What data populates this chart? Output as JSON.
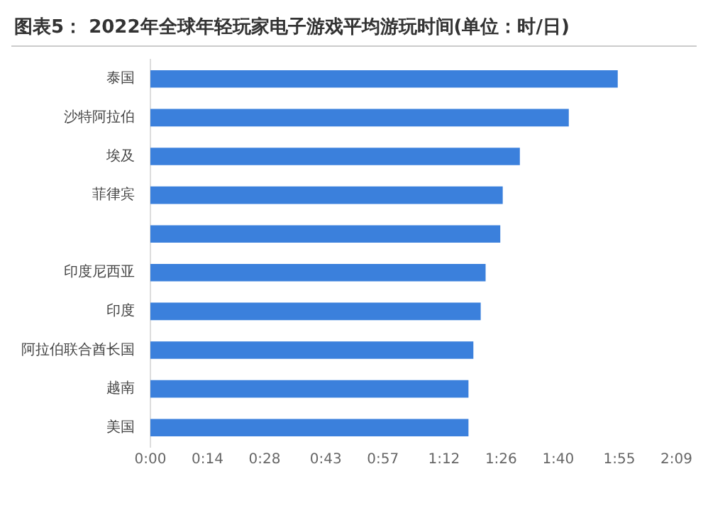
{
  "chart_data": {
    "type": "bar",
    "orientation": "horizontal",
    "title": "图表5： 2022年全球年轻玩家电子游戏平均游玩时间(单位：时/日)",
    "categories": [
      "泰国",
      "沙特阿拉伯",
      "埃及",
      "菲律宾",
      null,
      "印度尼西亚",
      "印度",
      "阿拉伯联合酋长国",
      "越南",
      "美国"
    ],
    "values": [
      1.91,
      1.71,
      1.51,
      1.44,
      1.43,
      1.37,
      1.35,
      1.32,
      1.3,
      1.3
    ],
    "color": "#3b80dc",
    "xlim": [
      0,
      2.15
    ],
    "xticks": [
      {
        "value": 0,
        "label": "0:00"
      },
      {
        "value": 0.2333,
        "label": "0:14"
      },
      {
        "value": 0.4667,
        "label": "0:28"
      },
      {
        "value": 0.7167,
        "label": "0:43"
      },
      {
        "value": 0.95,
        "label": "0:57"
      },
      {
        "value": 1.2,
        "label": "1:12"
      },
      {
        "value": 1.4333,
        "label": "1:26"
      },
      {
        "value": 1.6667,
        "label": "1:40"
      },
      {
        "value": 1.9167,
        "label": "1:55"
      },
      {
        "value": 2.15,
        "label": "2:09"
      }
    ],
    "grid": false,
    "legend": false
  }
}
